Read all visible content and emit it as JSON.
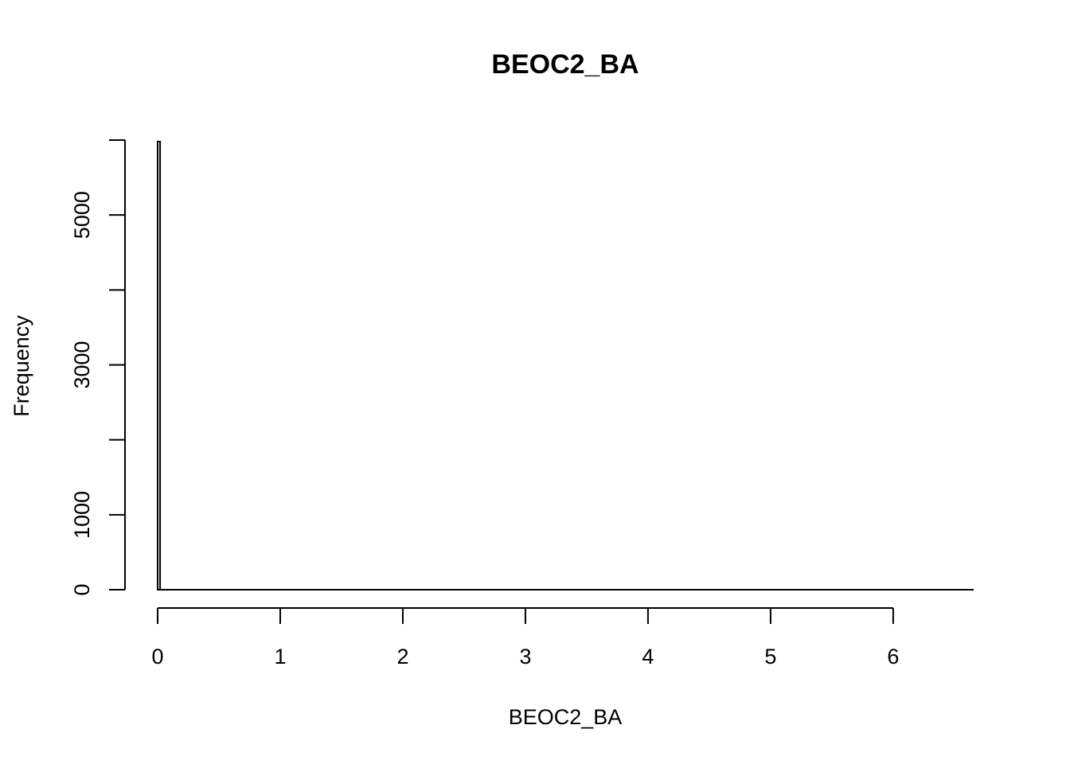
{
  "chart_data": {
    "type": "bar",
    "title": "BEOC2_BA",
    "xlabel": "BEOC2_BA",
    "ylabel": "Frequency",
    "xlim": [
      0,
      6.65
    ],
    "ylim": [
      0,
      6000
    ],
    "x_ticks": [
      0,
      1,
      2,
      3,
      4,
      5,
      6
    ],
    "y_ticks": [
      0,
      1000,
      2000,
      3000,
      4000,
      5000,
      6000
    ],
    "y_tick_labels": [
      "0",
      "1000",
      "",
      "3000",
      "",
      "5000",
      ""
    ],
    "bins": [
      {
        "x0": 0.0,
        "x1": 0.02,
        "count": 5980
      },
      {
        "x0": 0.02,
        "x1": 6.65,
        "count": 0
      }
    ],
    "grid": false,
    "legend": "none"
  }
}
